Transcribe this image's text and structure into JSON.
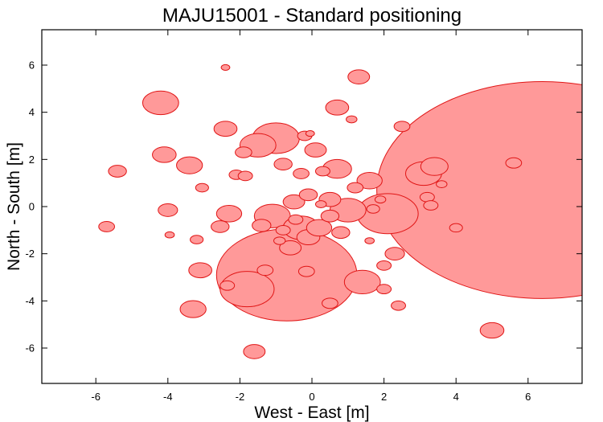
{
  "chart_data": {
    "type": "scatter",
    "title": "MAJU15001 - Standard positioning",
    "xlabel": "West - East [m]",
    "ylabel": "North - South [m]",
    "xlim": [
      -7.5,
      7.5
    ],
    "ylim": [
      -7.5,
      7.5
    ],
    "xticks": [
      -6,
      -4,
      -2,
      0,
      2,
      4,
      6
    ],
    "yticks": [
      -6,
      -4,
      -2,
      0,
      2,
      4,
      6
    ],
    "grid": false,
    "legend": "none",
    "color_fill": "#ff9999",
    "color_stroke": "#e01515",
    "points": [
      {
        "x": 6.4,
        "y": 0.7,
        "r": 4.6
      },
      {
        "x": -0.7,
        "y": -2.9,
        "r": 1.95
      },
      {
        "x": -1.0,
        "y": 2.9,
        "r": 0.65
      },
      {
        "x": 2.1,
        "y": -0.3,
        "r": 0.85
      },
      {
        "x": -1.8,
        "y": -3.5,
        "r": 0.75
      },
      {
        "x": 1.0,
        "y": -0.15,
        "r": 0.5
      },
      {
        "x": -1.1,
        "y": -0.4,
        "r": 0.5
      },
      {
        "x": 1.4,
        "y": -3.2,
        "r": 0.5
      },
      {
        "x": -4.2,
        "y": 4.4,
        "r": 0.5
      },
      {
        "x": 3.1,
        "y": 1.4,
        "r": 0.5
      },
      {
        "x": 3.4,
        "y": 1.7,
        "r": 0.38
      },
      {
        "x": -1.5,
        "y": 2.6,
        "r": 0.5
      },
      {
        "x": 0.7,
        "y": 1.6,
        "r": 0.4
      },
      {
        "x": -0.3,
        "y": -0.9,
        "r": 0.5
      },
      {
        "x": -3.4,
        "y": 1.75,
        "r": 0.36
      },
      {
        "x": -4.1,
        "y": 2.2,
        "r": 0.33
      },
      {
        "x": -3.3,
        "y": -4.35,
        "r": 0.36
      },
      {
        "x": 1.6,
        "y": 1.1,
        "r": 0.35
      },
      {
        "x": 2.3,
        "y": -2.0,
        "r": 0.27
      },
      {
        "x": 5.0,
        "y": -5.25,
        "r": 0.33
      },
      {
        "x": -1.6,
        "y": -6.15,
        "r": 0.3
      },
      {
        "x": -3.1,
        "y": -2.7,
        "r": 0.32
      },
      {
        "x": -2.4,
        "y": 3.3,
        "r": 0.32
      },
      {
        "x": -2.3,
        "y": -0.3,
        "r": 0.35
      },
      {
        "x": 1.3,
        "y": 5.5,
        "r": 0.3
      },
      {
        "x": 0.7,
        "y": 4.2,
        "r": 0.32
      },
      {
        "x": -4.0,
        "y": -0.15,
        "r": 0.27
      },
      {
        "x": -5.4,
        "y": 1.5,
        "r": 0.25
      },
      {
        "x": -5.7,
        "y": -0.85,
        "r": 0.22
      },
      {
        "x": 0.1,
        "y": 2.4,
        "r": 0.3
      },
      {
        "x": -0.6,
        "y": -1.75,
        "r": 0.3
      },
      {
        "x": -0.1,
        "y": -1.3,
        "r": 0.32
      },
      {
        "x": 0.5,
        "y": 0.3,
        "r": 0.3
      },
      {
        "x": 0.2,
        "y": -0.9,
        "r": 0.35
      },
      {
        "x": -0.5,
        "y": 0.2,
        "r": 0.3
      },
      {
        "x": -1.4,
        "y": -0.8,
        "r": 0.26
      },
      {
        "x": -0.8,
        "y": 1.8,
        "r": 0.25
      },
      {
        "x": 2.5,
        "y": 3.4,
        "r": 0.22
      },
      {
        "x": 1.2,
        "y": 0.8,
        "r": 0.22
      },
      {
        "x": -2.55,
        "y": -0.85,
        "r": 0.25
      },
      {
        "x": -1.9,
        "y": 2.3,
        "r": 0.23
      },
      {
        "x": -2.1,
        "y": 1.35,
        "r": 0.2
      },
      {
        "x": -1.85,
        "y": 1.3,
        "r": 0.2
      },
      {
        "x": -0.3,
        "y": 1.4,
        "r": 0.22
      },
      {
        "x": 0.3,
        "y": 1.5,
        "r": 0.2
      },
      {
        "x": -0.1,
        "y": 0.5,
        "r": 0.25
      },
      {
        "x": -0.15,
        "y": -2.75,
        "r": 0.22
      },
      {
        "x": -1.3,
        "y": -2.7,
        "r": 0.22
      },
      {
        "x": 0.5,
        "y": -4.1,
        "r": 0.22
      },
      {
        "x": 2.4,
        "y": -4.2,
        "r": 0.2
      },
      {
        "x": 2.0,
        "y": -3.5,
        "r": 0.2
      },
      {
        "x": 2.0,
        "y": -2.5,
        "r": 0.2
      },
      {
        "x": 3.2,
        "y": 0.4,
        "r": 0.2
      },
      {
        "x": 3.3,
        "y": 0.05,
        "r": 0.2
      },
      {
        "x": 5.6,
        "y": 1.85,
        "r": 0.22
      },
      {
        "x": 4.0,
        "y": -0.9,
        "r": 0.18
      },
      {
        "x": -3.2,
        "y": -1.4,
        "r": 0.18
      },
      {
        "x": -3.05,
        "y": 0.8,
        "r": 0.18
      },
      {
        "x": -2.35,
        "y": -3.35,
        "r": 0.2
      },
      {
        "x": 0.8,
        "y": -1.1,
        "r": 0.25
      },
      {
        "x": 0.5,
        "y": -0.4,
        "r": 0.25
      },
      {
        "x": -0.2,
        "y": 3.0,
        "r": 0.2
      },
      {
        "x": 1.1,
        "y": 3.7,
        "r": 0.15
      },
      {
        "x": -0.8,
        "y": -1.0,
        "r": 0.2
      },
      {
        "x": -0.9,
        "y": -1.45,
        "r": 0.16
      },
      {
        "x": -2.4,
        "y": 5.9,
        "r": 0.12
      },
      {
        "x": -3.95,
        "y": -1.2,
        "r": 0.13
      },
      {
        "x": 1.6,
        "y": -1.45,
        "r": 0.13
      },
      {
        "x": 1.7,
        "y": -0.1,
        "r": 0.18
      },
      {
        "x": 3.6,
        "y": 0.95,
        "r": 0.15
      },
      {
        "x": 1.9,
        "y": 0.3,
        "r": 0.15
      },
      {
        "x": -0.05,
        "y": 3.1,
        "r": 0.12
      },
      {
        "x": 0.25,
        "y": 0.1,
        "r": 0.15
      },
      {
        "x": -0.45,
        "y": -0.55,
        "r": 0.2
      }
    ]
  }
}
